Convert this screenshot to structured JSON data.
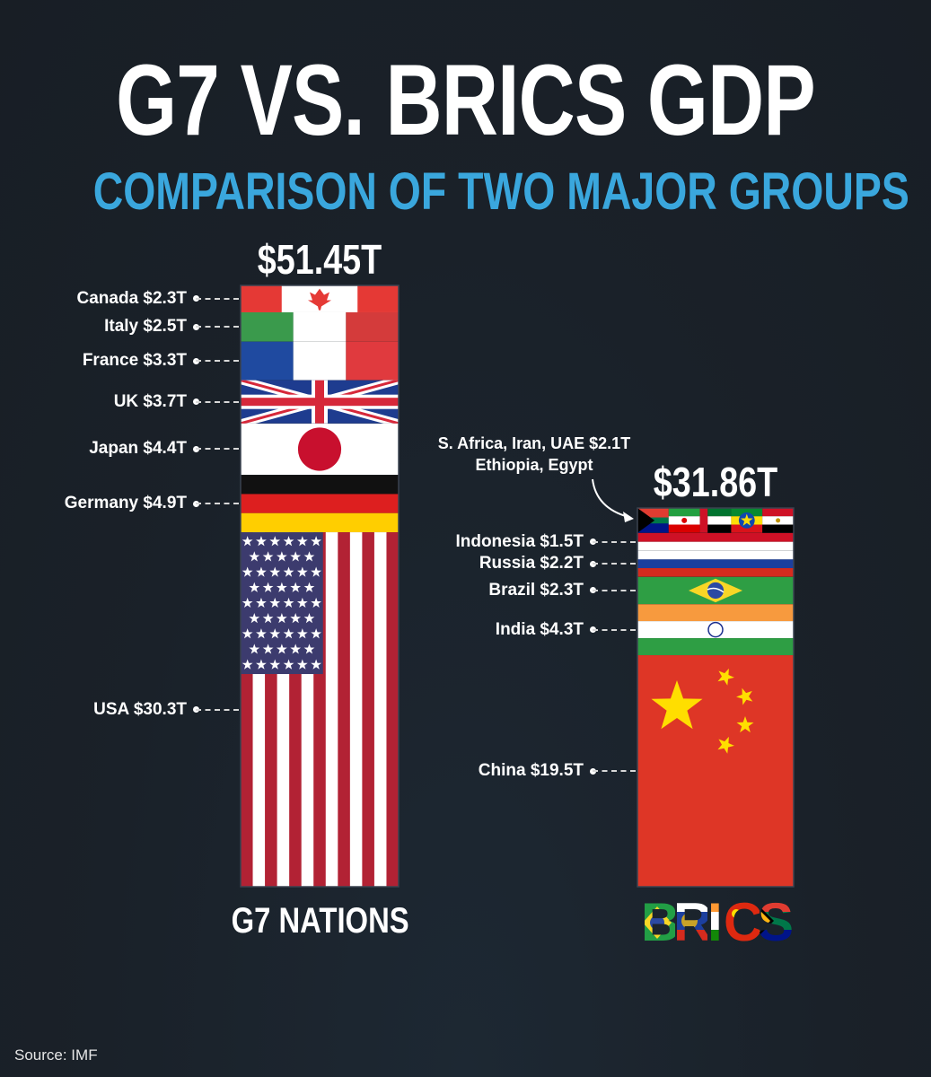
{
  "title": "G7 VS. BRICS GDP",
  "subtitle": "COMPARISON OF TWO MAJOR GROUPS",
  "source": "Source: IMF",
  "chart_data": [
    {
      "type": "bar",
      "stacked": true,
      "group": "G7 NATIONS",
      "total_label": "$51.45T",
      "segments": [
        {
          "country": "Canada",
          "label": "Canada $2.3T",
          "value": 2.3,
          "flag": "canada-flag"
        },
        {
          "country": "Italy",
          "label": "Italy $2.5T",
          "value": 2.5,
          "flag": "italy-flag"
        },
        {
          "country": "France",
          "label": "France $3.3T",
          "value": 3.3,
          "flag": "france-flag"
        },
        {
          "country": "UK",
          "label": "UK $3.7T",
          "value": 3.7,
          "flag": "uk-flag"
        },
        {
          "country": "Japan",
          "label": "Japan $4.4T",
          "value": 4.4,
          "flag": "japan-flag"
        },
        {
          "country": "Germany",
          "label": "Germany $4.9T",
          "value": 4.9,
          "flag": "germany-flag"
        },
        {
          "country": "USA",
          "label": "USA $30.3T",
          "value": 30.3,
          "flag": "usa-flag"
        }
      ]
    },
    {
      "type": "bar",
      "stacked": true,
      "group": "BRICS",
      "total_label": "$31.86T",
      "segments": [
        {
          "country": "S. Africa, Iran, UAE, Ethiopia, Egypt",
          "label": "S. Africa, Iran, UAE $2.1T",
          "label2": "Ethiopia, Egypt",
          "value": 2.1,
          "flag": "mixed-flags"
        },
        {
          "country": "Indonesia",
          "label": "Indonesia $1.5T",
          "value": 1.5,
          "flag": "indonesia-flag"
        },
        {
          "country": "Russia",
          "label": "Russia $2.2T",
          "value": 2.2,
          "flag": "russia-flag"
        },
        {
          "country": "Brazil",
          "label": "Brazil $2.3T",
          "value": 2.3,
          "flag": "brazil-flag"
        },
        {
          "country": "India",
          "label": "India $4.3T",
          "value": 4.3,
          "flag": "india-flag"
        },
        {
          "country": "China",
          "label": "China $19.5T",
          "value": 19.5,
          "flag": "china-flag"
        }
      ]
    }
  ],
  "colors": {
    "background": "#1a2129",
    "subtitle": "#3aa7dd",
    "text": "#ffffff"
  }
}
